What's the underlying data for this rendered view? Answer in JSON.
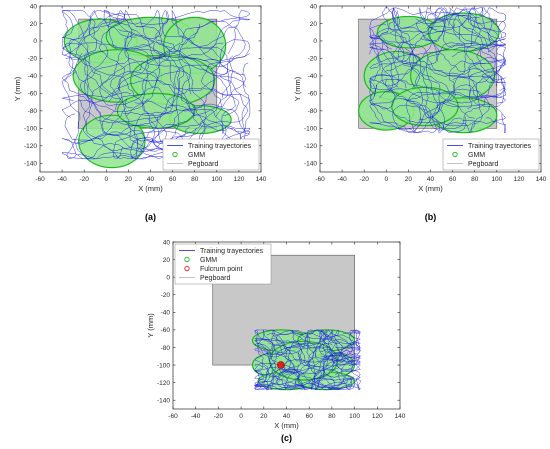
{
  "chart_data": [
    {
      "type": "line",
      "panel_label": "(a)",
      "xlabel": "X (mm)",
      "ylabel": "Y (mm)",
      "xlim": [
        -60,
        140
      ],
      "ylim": [
        -150,
        40
      ],
      "xticks": [
        -60,
        -40,
        -20,
        0,
        20,
        40,
        60,
        80,
        100,
        120,
        140
      ],
      "yticks": [
        -140,
        -120,
        -100,
        -80,
        -60,
        -40,
        -20,
        0,
        20,
        40
      ],
      "xtick_labels": [
        "-60",
        "-40",
        "-20",
        "0",
        "20",
        "40",
        "60",
        "80",
        "100",
        "120",
        "140"
      ],
      "ytick_labels": [
        "-140",
        "-120",
        "-100",
        "-80",
        "-60",
        "-40",
        "-20",
        "0",
        "20",
        "40"
      ],
      "grid": false,
      "legend_position": "bottom-right",
      "legend": [
        "Training trayectories",
        "GMM",
        "Pegboard"
      ],
      "pegboard": {
        "x": [
          -25,
          100
        ],
        "y": [
          -100,
          25
        ]
      },
      "gmm_ellipses": [
        {
          "cx": -5,
          "cy": 0,
          "rx": 33,
          "ry": 25
        },
        {
          "cx": 40,
          "cy": 5,
          "rx": 40,
          "ry": 22
        },
        {
          "cx": 80,
          "cy": -5,
          "rx": 28,
          "ry": 32
        },
        {
          "cx": 10,
          "cy": -40,
          "rx": 40,
          "ry": 30
        },
        {
          "cx": 60,
          "cy": -45,
          "rx": 38,
          "ry": 28
        },
        {
          "cx": 5,
          "cy": -115,
          "rx": 30,
          "ry": 30
        },
        {
          "cx": 85,
          "cy": -90,
          "rx": 28,
          "ry": 16
        },
        {
          "cx": 45,
          "cy": -80,
          "rx": 35,
          "ry": 20
        }
      ],
      "trajectory_region": {
        "x": [
          -40,
          130
        ],
        "y": [
          -135,
          35
        ]
      }
    },
    {
      "type": "line",
      "panel_label": "(b)",
      "xlabel": "X (mm)",
      "ylabel": "Y (mm)",
      "xlim": [
        -60,
        140
      ],
      "ylim": [
        -150,
        40
      ],
      "xticks": [
        -60,
        -40,
        -20,
        0,
        20,
        40,
        60,
        80,
        100,
        120,
        140
      ],
      "yticks": [
        -140,
        -120,
        -100,
        -80,
        -60,
        -40,
        -20,
        0,
        20,
        40
      ],
      "xtick_labels": [
        "-60",
        "-40",
        "-20",
        "0",
        "20",
        "40",
        "60",
        "80",
        "100",
        "120",
        "140"
      ],
      "ytick_labels": [
        "-140",
        "-120",
        "-100",
        "-80",
        "-60",
        "-40",
        "-20",
        "0",
        "20",
        "40"
      ],
      "grid": false,
      "legend_position": "bottom-right",
      "legend": [
        "Training trayectories",
        "GMM",
        "Pegboard"
      ],
      "pegboard": {
        "x": [
          -25,
          100
        ],
        "y": [
          -100,
          25
        ]
      },
      "gmm_ellipses": [
        {
          "cx": 20,
          "cy": 10,
          "rx": 28,
          "ry": 18
        },
        {
          "cx": 70,
          "cy": 10,
          "rx": 32,
          "ry": 22
        },
        {
          "cx": 10,
          "cy": -40,
          "rx": 30,
          "ry": 28
        },
        {
          "cx": 60,
          "cy": -40,
          "rx": 38,
          "ry": 30
        },
        {
          "cx": 0,
          "cy": -80,
          "rx": 25,
          "ry": 22
        },
        {
          "cx": 70,
          "cy": -85,
          "rx": 30,
          "ry": 20
        },
        {
          "cx": 35,
          "cy": -75,
          "rx": 30,
          "ry": 22
        }
      ],
      "trajectory_region": {
        "x": [
          -15,
          108
        ],
        "y": [
          -105,
          38
        ]
      }
    },
    {
      "type": "line",
      "panel_label": "(c)",
      "xlabel": "X (mm)",
      "ylabel": "Y (mm)",
      "xlim": [
        -60,
        140
      ],
      "ylim": [
        -150,
        40
      ],
      "xticks": [
        -60,
        -40,
        -20,
        0,
        20,
        40,
        60,
        80,
        100,
        120,
        140
      ],
      "yticks": [
        -140,
        -120,
        -100,
        -80,
        -60,
        -40,
        -20,
        0,
        20,
        40
      ],
      "xtick_labels": [
        "-60",
        "-40",
        "-20",
        "0",
        "20",
        "40",
        "60",
        "80",
        "100",
        "120",
        "140"
      ],
      "ytick_labels": [
        "-140",
        "-120",
        "-100",
        "-80",
        "-60",
        "-40",
        "-20",
        "0",
        "20",
        "40"
      ],
      "grid": false,
      "legend_position": "top-left",
      "legend": [
        "Training trayectories",
        "GMM",
        "Fulcrum point",
        "Pegboard"
      ],
      "pegboard": {
        "x": [
          -25,
          100
        ],
        "y": [
          -100,
          25
        ]
      },
      "fulcrum_point": {
        "x": 35,
        "y": -100
      },
      "gmm_ellipses": [
        {
          "cx": 35,
          "cy": -72,
          "rx": 25,
          "ry": 12
        },
        {
          "cx": 75,
          "cy": -72,
          "rx": 25,
          "ry": 12
        },
        {
          "cx": 30,
          "cy": -100,
          "rx": 20,
          "ry": 14
        },
        {
          "cx": 80,
          "cy": -100,
          "rx": 20,
          "ry": 14
        },
        {
          "cx": 40,
          "cy": -118,
          "rx": 25,
          "ry": 10
        },
        {
          "cx": 75,
          "cy": -118,
          "rx": 25,
          "ry": 10
        },
        {
          "cx": 55,
          "cy": -95,
          "rx": 30,
          "ry": 22
        }
      ],
      "trajectory_region": {
        "x": [
          12,
          105
        ],
        "y": [
          -128,
          -60
        ]
      }
    }
  ],
  "colors": {
    "trajectory": "#1f1fe6",
    "gmm_fill": "#8ee68e",
    "gmm_edge": "#1fb81f",
    "pegboard_fill": "#c8c8c8",
    "pegboard_edge": "#555555",
    "fulcrum": "#e02020",
    "axis": "#262626"
  }
}
